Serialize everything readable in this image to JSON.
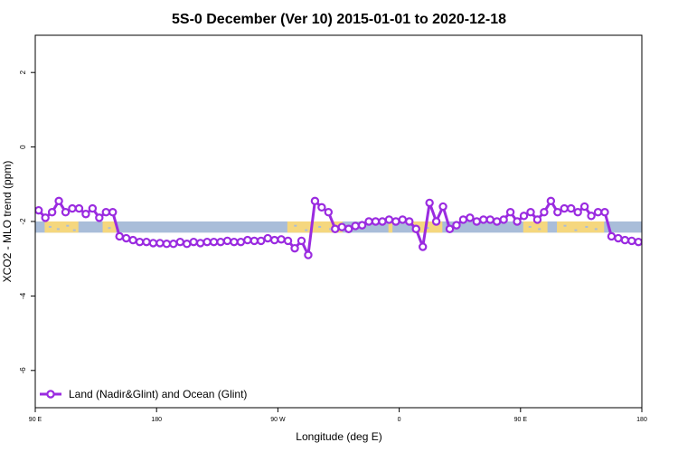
{
  "chart_data": {
    "type": "line",
    "title": "5S-0 December (Ver 10)   2015-01-01 to 2020-12-18",
    "xlabel": "Longitude (deg E)",
    "ylabel": "XCO2 - MLO trend (ppm)",
    "xlim": [
      90,
      540
    ],
    "ylim": [
      -7,
      3
    ],
    "x_ticks": [
      {
        "value": 90,
        "label": "90 E"
      },
      {
        "value": 180,
        "label": "180"
      },
      {
        "value": 270,
        "label": "90 W"
      },
      {
        "value": 360,
        "label": "0"
      },
      {
        "value": 450,
        "label": "90 E"
      },
      {
        "value": 540,
        "label": "180"
      }
    ],
    "y_ticks": [
      {
        "value": 2,
        "label": "2"
      },
      {
        "value": 0,
        "label": "0"
      },
      {
        "value": -2,
        "label": "-2"
      },
      {
        "value": -4,
        "label": "-4"
      },
      {
        "value": -6,
        "label": "-6"
      }
    ],
    "grid": false,
    "legend_position": "bottom-left",
    "land_strip": {
      "y_top": -2.0,
      "y_bottom": -2.3,
      "ocean_color": "#a9bdd9",
      "land_color": "#f5d77e"
    },
    "series": [
      {
        "name": "Land (Nadir&Glint) and Ocean (Glint)",
        "color": "#9a2be0",
        "x": [
          92.5,
          97.5,
          102.5,
          107.5,
          112.5,
          117.5,
          122.5,
          127.5,
          132.5,
          137.5,
          142.5,
          147.5,
          152.5,
          157.5,
          162.5,
          167.5,
          172.5,
          177.5,
          182.5,
          187.5,
          192.5,
          197.5,
          202.5,
          207.5,
          212.5,
          217.5,
          222.5,
          227.5,
          232.5,
          237.5,
          242.5,
          247.5,
          252.5,
          257.5,
          262.5,
          267.5,
          272.5,
          277.5,
          282.5,
          287.5,
          292.5,
          297.5,
          302.5,
          307.5,
          312.5,
          317.5,
          322.5,
          327.5,
          332.5,
          337.5,
          342.5,
          347.5,
          352.5,
          357.5,
          362.5,
          367.5,
          372.5,
          377.5,
          382.5,
          387.5,
          392.5,
          397.5,
          402.5,
          407.5,
          412.5,
          417.5,
          422.5,
          427.5,
          432.5,
          437.5,
          442.5,
          447.5,
          452.5,
          457.5,
          462.5,
          467.5,
          472.5,
          477.5,
          482.5,
          487.5,
          492.5,
          497.5,
          502.5,
          507.5,
          512.5,
          517.5,
          522.5,
          527.5,
          532.5,
          537.5
        ],
        "values": [
          -1.7,
          -1.9,
          -1.75,
          -1.45,
          -1.75,
          -1.65,
          -1.65,
          -1.8,
          -1.65,
          -1.9,
          -1.75,
          -1.75,
          -2.4,
          -2.45,
          -2.5,
          -2.55,
          -2.55,
          -2.58,
          -2.58,
          -2.6,
          -2.6,
          -2.55,
          -2.6,
          -2.55,
          -2.58,
          -2.55,
          -2.55,
          -2.55,
          -2.52,
          -2.55,
          -2.55,
          -2.5,
          -2.52,
          -2.52,
          -2.45,
          -2.5,
          -2.48,
          -2.52,
          -2.72,
          -2.52,
          -2.9,
          -1.45,
          -1.62,
          -1.75,
          -2.2,
          -2.15,
          -2.2,
          -2.12,
          -2.1,
          -2.0,
          -2.0,
          -2.0,
          -1.95,
          -2.0,
          -1.95,
          -2.0,
          -2.2,
          -2.68,
          -1.5,
          -2.0,
          -1.6,
          -2.2,
          -2.1,
          -1.95,
          -1.9,
          -2.0,
          -1.95,
          -1.95,
          -2.0,
          -1.95,
          -1.75,
          -2.0,
          -1.85,
          -1.75,
          -1.95,
          -1.75,
          -1.45,
          -1.75,
          -1.65,
          -1.65,
          -1.75,
          -1.6,
          -1.85,
          -1.75,
          -1.75,
          -2.4,
          -2.45,
          -2.5,
          -2.52,
          -2.55
        ]
      }
    ]
  }
}
